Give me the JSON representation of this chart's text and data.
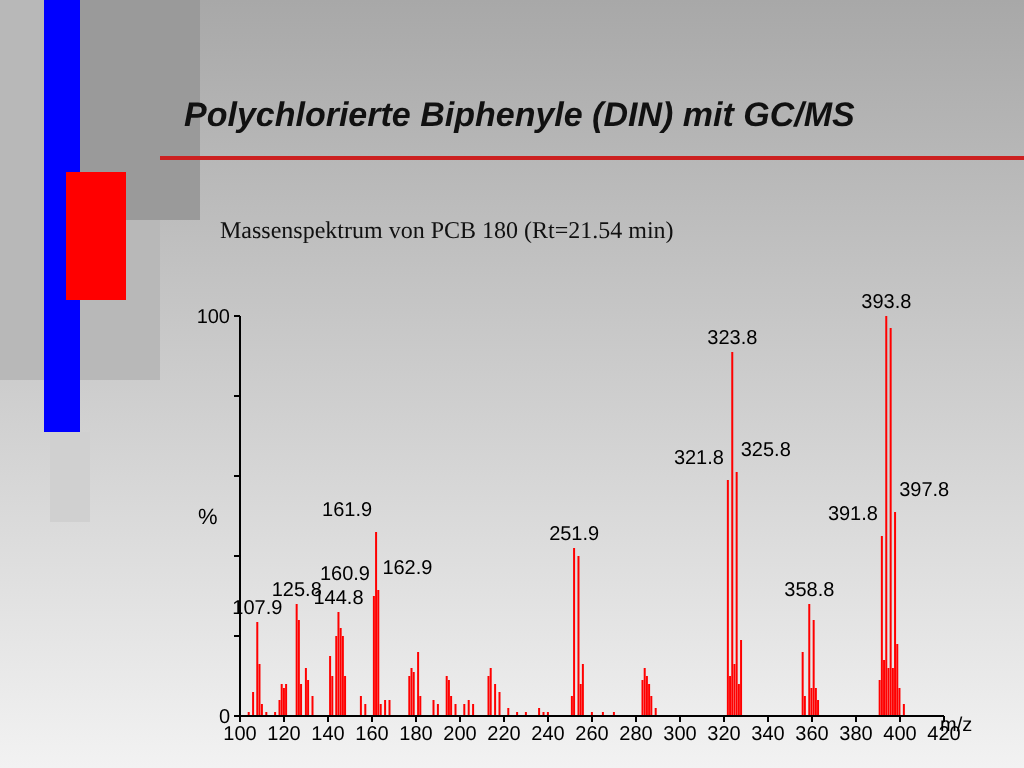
{
  "chart_data": {
    "type": "bar",
    "title": "Polychlorierte Biphenyle (DIN) mit GC/MS",
    "subtitle": "Massenspektrum von PCB 180 (Rt=21.54 min)",
    "xlabel": "m/z",
    "ylabel": "%",
    "x": [
      104,
      106,
      107.9,
      108.9,
      110,
      112,
      116,
      118,
      119,
      120,
      121,
      125.8,
      126.8,
      127.8,
      130,
      131,
      133,
      141,
      142,
      143.8,
      144.8,
      145.8,
      146.8,
      147.8,
      155,
      157,
      160.9,
      161.9,
      162.9,
      164,
      166,
      168,
      177,
      178,
      179,
      181,
      182,
      188,
      190,
      194,
      195,
      196,
      198,
      202,
      204,
      206,
      213,
      214,
      216,
      218,
      222,
      226,
      230,
      236,
      238,
      240,
      250.9,
      251.9,
      253.9,
      254.9,
      255.9,
      260,
      265,
      270,
      283,
      284,
      285,
      286,
      287,
      289,
      321.8,
      322.8,
      323.8,
      324.8,
      325.8,
      326.8,
      327.8,
      355.8,
      356.8,
      358.8,
      359.8,
      360.8,
      361.8,
      362.8,
      390.8,
      391.8,
      392.8,
      393.8,
      394.8,
      395.8,
      396.8,
      397.8,
      398.8,
      399.8,
      401.8
    ],
    "series": [
      {
        "color": "#ff0000",
        "values": [
          1,
          6,
          23.5,
          13,
          3,
          1,
          1,
          4,
          8,
          7,
          8,
          28,
          24,
          8,
          12,
          9,
          5,
          15,
          10,
          20,
          26,
          22,
          20,
          10,
          5,
          3,
          30,
          46,
          31.5,
          3,
          4,
          4,
          10,
          12,
          11,
          16,
          5,
          4,
          3,
          10,
          9,
          5,
          3,
          3,
          4,
          3,
          10,
          12,
          8,
          6,
          2,
          1,
          1,
          2,
          1,
          1,
          5,
          42,
          40,
          8,
          13,
          1,
          1,
          1,
          9,
          12,
          10,
          8,
          5,
          2,
          59,
          10,
          91,
          13,
          61,
          8,
          19,
          16,
          5,
          28,
          7,
          24,
          7,
          4,
          9,
          45,
          14,
          100,
          12,
          97,
          12,
          51,
          18,
          7,
          3
        ]
      }
    ],
    "xlim": [
      100,
      420
    ],
    "xticks": [
      100,
      120,
      140,
      160,
      180,
      200,
      220,
      240,
      260,
      280,
      300,
      320,
      340,
      360,
      380,
      400,
      420
    ],
    "ylim": [
      0,
      100
    ],
    "yticks": [
      0,
      {
        "value": 20,
        "label": null
      },
      {
        "value": 40,
        "label": null
      },
      {
        "value": 60,
        "label": null
      },
      {
        "value": 80,
        "label": null
      },
      100
    ],
    "grid": false,
    "legend": false,
    "annotations": [
      {
        "text": "107.9",
        "x": 107.9,
        "y": 23.5
      },
      {
        "text": "125.8",
        "x": 125.8,
        "y": 28
      },
      {
        "text": "144.8",
        "x": 144.8,
        "y": 26
      },
      {
        "text": "160.9",
        "x": 160.9,
        "y": 30
      },
      {
        "text": "161.9",
        "x": 161.9,
        "y": 46
      },
      {
        "text": "162.9",
        "x": 162.9,
        "y": 31.5
      },
      {
        "text": "251.9",
        "x": 251.9,
        "y": 42
      },
      {
        "text": "321.8",
        "x": 321.8,
        "y": 59
      },
      {
        "text": "323.8",
        "x": 323.8,
        "y": 91
      },
      {
        "text": "325.8",
        "x": 325.8,
        "y": 61
      },
      {
        "text": "358.8",
        "x": 358.8,
        "y": 28
      },
      {
        "text": "391.8",
        "x": 391.8,
        "y": 45
      },
      {
        "text": "393.8",
        "x": 393.8,
        "y": 100
      },
      {
        "text": "397.8",
        "x": 397.8,
        "y": 51
      }
    ]
  }
}
